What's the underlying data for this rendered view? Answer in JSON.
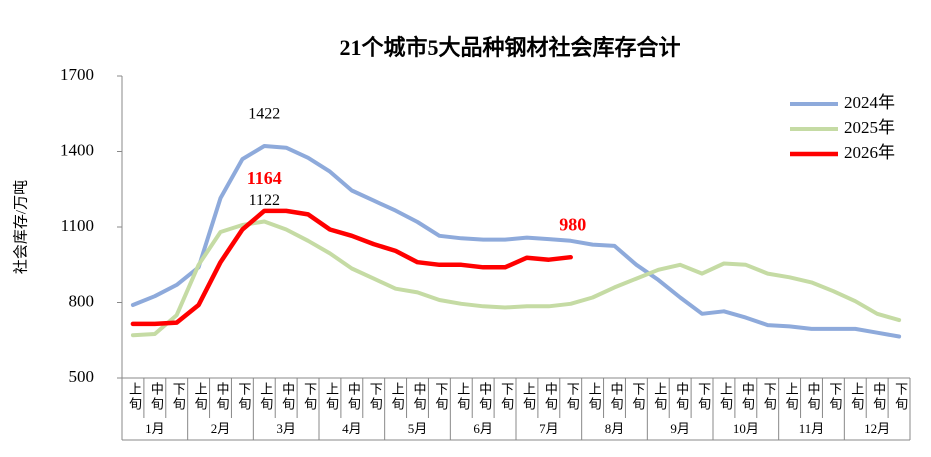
{
  "chart_data": {
    "type": "line",
    "title": "21个城市5大品种钢材社会库存合计",
    "y_label": "社会库存/万吨",
    "categories": [
      "上旬",
      "中旬",
      "下旬",
      "上旬",
      "中旬",
      "下旬",
      "上旬",
      "中旬",
      "下旬",
      "上旬",
      "中旬",
      "下旬",
      "上旬",
      "中旬",
      "下旬",
      "上旬",
      "中旬",
      "下旬",
      "上旬",
      "中旬",
      "下旬",
      "上旬",
      "中旬",
      "下旬",
      "上旬",
      "中旬",
      "下旬",
      "上旬",
      "中旬",
      "下旬",
      "上旬",
      "中旬",
      "下旬",
      "上旬",
      "中旬",
      "下旬"
    ],
    "months": [
      "1月",
      "2月",
      "3月",
      "4月",
      "5月",
      "6月",
      "7月",
      "8月",
      "9月",
      "10月",
      "11月",
      "12月"
    ],
    "ylim": [
      500,
      1700
    ],
    "yticks": [
      500,
      800,
      1100,
      1400,
      1700
    ],
    "grid": false,
    "legend": "top-right",
    "series": [
      {
        "name": "2024年",
        "color": "#8eaadb",
        "labeled_points": [
          6
        ],
        "values": [
          790,
          825,
          870,
          940,
          1215,
          1370,
          1422,
          1415,
          1375,
          1320,
          1245,
          1205,
          1165,
          1120,
          1065,
          1055,
          1050,
          1050,
          1058,
          1052,
          1045,
          1030,
          1025,
          950,
          890,
          820,
          755,
          765,
          740,
          710,
          705,
          695,
          695,
          695,
          680,
          665
        ]
      },
      {
        "name": "2025年",
        "color": "#c5dba4",
        "labeled_points": [
          6
        ],
        "values": [
          670,
          675,
          750,
          950,
          1080,
          1108,
          1122,
          1090,
          1045,
          995,
          935,
          895,
          855,
          840,
          810,
          795,
          785,
          780,
          785,
          785,
          795,
          820,
          860,
          895,
          930,
          950,
          915,
          955,
          950,
          915,
          900,
          880,
          845,
          805,
          755,
          730
        ]
      },
      {
        "name": "2026年",
        "color": "#ff0000",
        "labeled_points": [
          6,
          20
        ],
        "values": [
          715,
          715,
          720,
          790,
          960,
          1090,
          1164,
          1164,
          1150,
          1090,
          1065,
          1032,
          1005,
          960,
          950,
          950,
          940,
          940,
          978,
          970,
          980,
          null,
          null,
          null,
          null,
          null,
          null,
          null,
          null,
          null,
          null,
          null,
          null,
          null,
          null,
          null
        ]
      }
    ]
  }
}
